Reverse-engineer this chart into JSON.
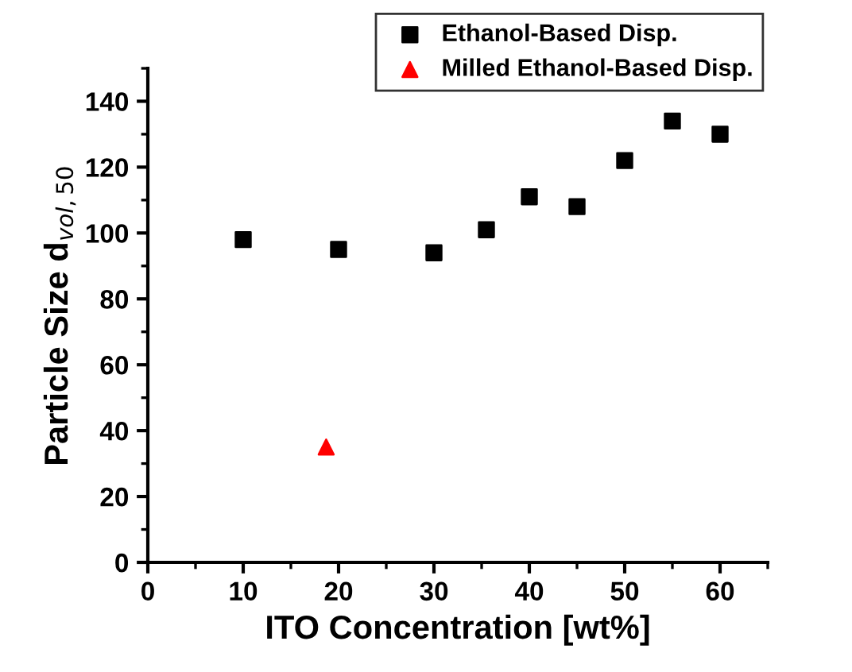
{
  "chart_data": {
    "type": "scatter",
    "xlabel": "ITO Concentration [wt%]",
    "ylabel": "Particle Size d$_{vol,50}$",
    "series": [
      {
        "name": "Ethanol-Based Disp.",
        "color": "#000000",
        "marker": "square",
        "x": [
          10,
          20,
          30,
          35.5,
          40,
          45,
          50,
          55,
          60
        ],
        "values": [
          98,
          95,
          94,
          101,
          111,
          108,
          122,
          134,
          130
        ]
      },
      {
        "name": "Milled Ethanol-Based Disp.",
        "color": "#ff0000",
        "marker": "triangle",
        "x": [
          18.7
        ],
        "values": [
          35
        ]
      }
    ],
    "xlim": [
      0,
      65
    ],
    "xticks": [
      0,
      10,
      20,
      30,
      40,
      50,
      60
    ],
    "ylim": [
      0,
      150
    ],
    "yticks": [
      0,
      20,
      40,
      60,
      80,
      100,
      120,
      140
    ],
    "grid": false,
    "legend": "top right"
  }
}
